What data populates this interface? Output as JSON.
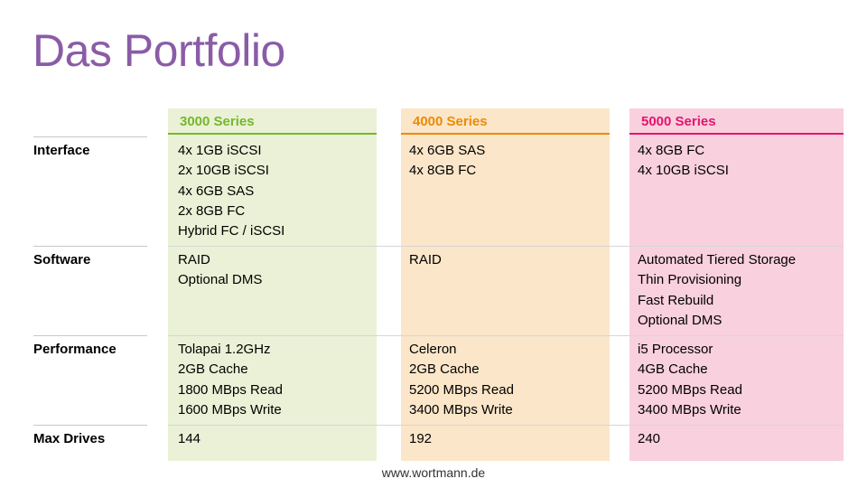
{
  "title": "Das Portfolio",
  "series": [
    {
      "name": "3000 Series",
      "color": "#76b82a",
      "bg": "#eaf1d6"
    },
    {
      "name": "4000 Series",
      "color": "#ee8a00",
      "bg": "#fbe6c9"
    },
    {
      "name": "5000 Series",
      "color": "#e2156f",
      "bg": "#f9d0de"
    }
  ],
  "rows": [
    {
      "label": "Interface",
      "cells": [
        "4x 1GB iSCSI\n2x 10GB iSCSI\n4x 6GB SAS\n2x 8GB FC\nHybrid FC / iSCSI",
        "4x 6GB SAS\n4x 8GB FC",
        "4x 8GB FC\n4x 10GB iSCSI"
      ]
    },
    {
      "label": "Software",
      "cells": [
        "RAID\nOptional DMS",
        "RAID",
        "Automated Tiered Storage\nThin Provisioning\nFast Rebuild\nOptional DMS"
      ]
    },
    {
      "label": "Performance",
      "cells": [
        "Tolapai 1.2GHz\n2GB Cache\n1800 MBps Read\n1600 MBps Write",
        "Celeron\n2GB Cache\n5200 MBps Read\n3400 MBps Write",
        "i5 Processor\n4GB Cache\n5200 MBps Read\n3400 MBps Write"
      ]
    },
    {
      "label": "Max Drives",
      "cells": [
        "144",
        "192",
        "240"
      ]
    }
  ],
  "footer": "www.wortmann.de"
}
